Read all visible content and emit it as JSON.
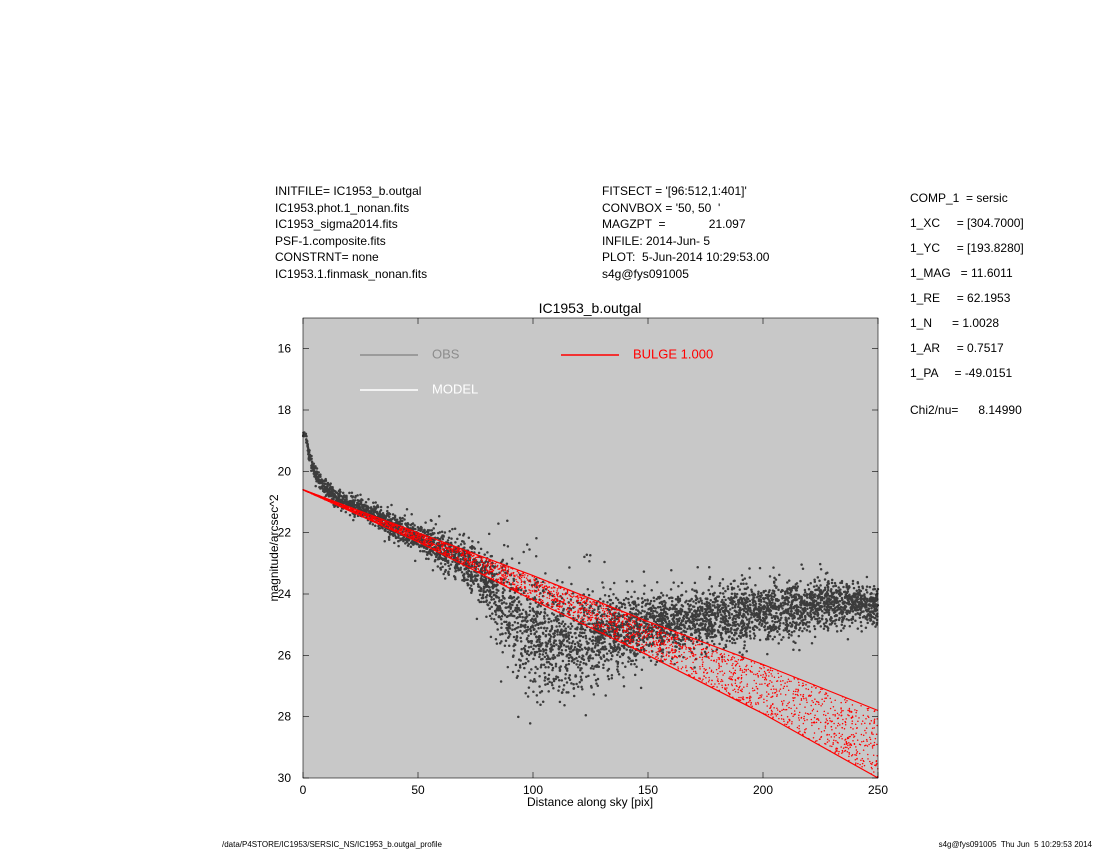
{
  "header": {
    "left": [
      "INITFILE= IC1953_b.outgal",
      "IC1953.phot.1_nonan.fits",
      "IC1953_sigma2014.fits",
      "PSF-1.composite.fits",
      "CONSTRNT= none",
      "IC1953.1.finmask_nonan.fits"
    ],
    "middle": [
      "FITSECT = '[96:512,1:401]'",
      "CONVBOX = '50, 50  '",
      "MAGZPT  =             21.097",
      "INFILE: 2014-Jun- 5",
      "PLOT:  5-Jun-2014 10:29:53.00",
      "s4g@fys091005"
    ]
  },
  "params": [
    "COMP_1  = sersic",
    "1_XC     = [304.7000]",
    "1_YC     = [193.8280]",
    "1_MAG   = 11.6011",
    "1_RE     = 62.1953",
    "1_N      = 1.0028",
    "1_AR     = 0.7517",
    "1_PA     = -49.0151",
    "Chi2/nu=      8.14990"
  ],
  "footer": {
    "left": "/data/P4STORE/IC1953/SERSIC_NS/IC1953_b.outgal_profile",
    "right": "s4g@fys091005  Thu Jun  5 10:29:53 2014"
  },
  "colors": {
    "plot_background": "#c8c8c8",
    "obs": "#3c3c3c",
    "obs_legend": "#8c8c8c",
    "model": "#ffffff",
    "bulge": "#ff0000"
  },
  "chart_data": {
    "type": "scatter",
    "title": "IC1953_b.outgal",
    "xlabel": "Distance along sky [pix]",
    "ylabel": "magnitude/arcsec^2",
    "xlim": [
      0,
      250
    ],
    "ylim": [
      30,
      15
    ],
    "y_inverted": true,
    "xticks": [
      0,
      50,
      100,
      150,
      200,
      250
    ],
    "yticks": [
      16,
      18,
      20,
      22,
      24,
      26,
      28,
      30
    ],
    "grid": false,
    "legend": [
      {
        "label": "OBS",
        "color": "#8c8c8c"
      },
      {
        "label": "MODEL",
        "color": "#ffffff"
      },
      {
        "label": "BULGE  1.000",
        "color": "#ff0000"
      }
    ],
    "series": [
      {
        "name": "OBS",
        "x": [
          1,
          3,
          6,
          10,
          15,
          20,
          25,
          30,
          40,
          50,
          60,
          70,
          80,
          90,
          100,
          110,
          120,
          130,
          140,
          150,
          160,
          170,
          180,
          190,
          200,
          210,
          220,
          230,
          240,
          250
        ],
        "y_upper": [
          18.6,
          19.3,
          19.8,
          20.2,
          20.5,
          20.6,
          20.7,
          20.8,
          21.2,
          21.5,
          21.7,
          21.9,
          22.1,
          22.3,
          22.8,
          23.1,
          23.3,
          23.4,
          23.5,
          23.6,
          23.6,
          23.5,
          23.5,
          23.3,
          23.3,
          23.4,
          23.3,
          23.3,
          23.4,
          23.6
        ],
        "y_lower": [
          18.9,
          19.9,
          20.5,
          20.9,
          21.3,
          21.5,
          21.7,
          21.9,
          22.4,
          22.9,
          23.4,
          24.0,
          25.2,
          27.0,
          27.8,
          28.1,
          27.8,
          27.2,
          27.0,
          26.5,
          26.3,
          26.2,
          26.0,
          25.9,
          25.7,
          25.7,
          25.5,
          25.4,
          25.3,
          25.2
        ]
      },
      {
        "name": "BULGE  1.000",
        "x": [
          0,
          50,
          100,
          150,
          200,
          250
        ],
        "y_upper": [
          20.6,
          22.0,
          23.4,
          24.9,
          26.3,
          27.8
        ],
        "y_lower": [
          20.6,
          22.3,
          24.2,
          26.0,
          27.9,
          30.0
        ]
      }
    ]
  }
}
